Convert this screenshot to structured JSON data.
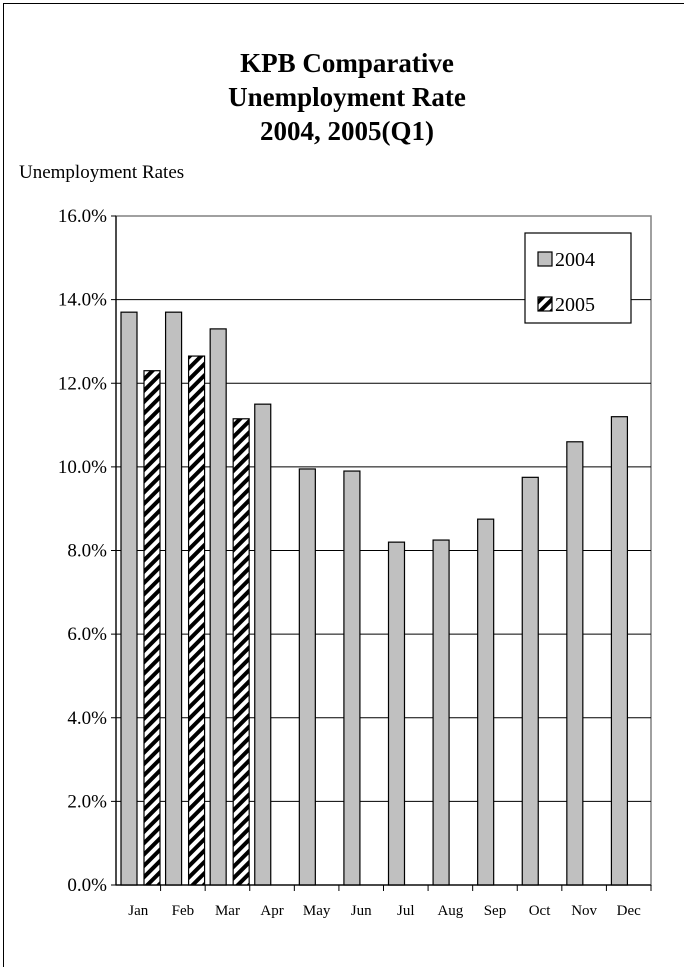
{
  "chart_data": {
    "type": "bar",
    "title_lines": [
      "KPB Comparative",
      "Unemployment Rate",
      "2004, 2005(Q1)"
    ],
    "ylabel": "Unemployment Rates",
    "xlabel": "",
    "categories": [
      "Jan",
      "Feb",
      "Mar",
      "Apr",
      "May",
      "Jun",
      "Jul",
      "Aug",
      "Sep",
      "Oct",
      "Nov",
      "Dec"
    ],
    "series": [
      {
        "name": "2004",
        "values": [
          13.7,
          13.7,
          13.3,
          11.5,
          9.95,
          9.9,
          8.2,
          8.25,
          8.75,
          9.75,
          10.6,
          11.2
        ],
        "fill": "#c0c0c0",
        "pattern": "solid"
      },
      {
        "name": "2005",
        "values": [
          12.3,
          12.65,
          11.15,
          null,
          null,
          null,
          null,
          null,
          null,
          null,
          null,
          null
        ],
        "fill": "#ffffff",
        "pattern": "diagonal-stripes"
      }
    ],
    "ylim": [
      0,
      16
    ],
    "yticks": [
      "0.0%",
      "2.0%",
      "4.0%",
      "6.0%",
      "8.0%",
      "10.0%",
      "12.0%",
      "14.0%",
      "16.0%"
    ],
    "ytick_values": [
      0,
      2,
      4,
      6,
      8,
      10,
      12,
      14,
      16
    ],
    "grid": true,
    "legend_position": "top-right",
    "colors": {
      "plot_border": "#808080",
      "gridline": "#000000",
      "bar_outline": "#000000"
    }
  }
}
